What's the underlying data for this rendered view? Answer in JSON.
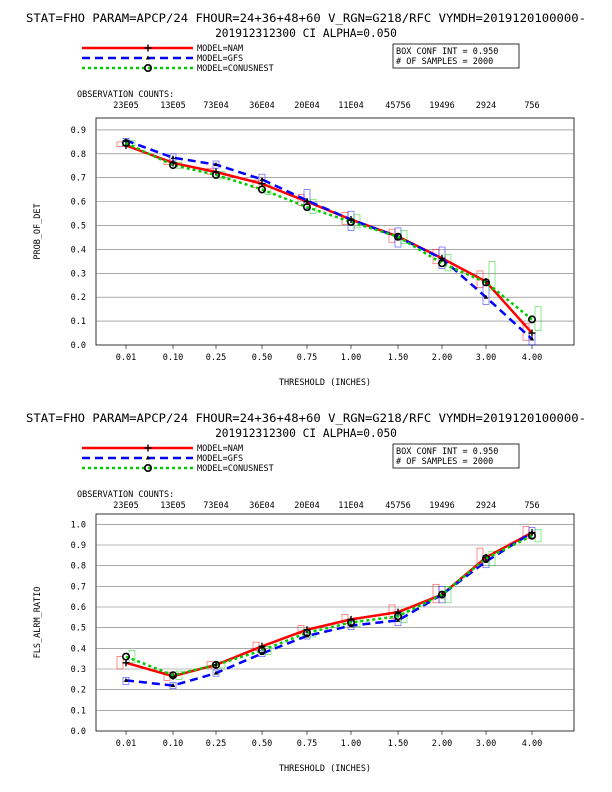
{
  "chart_data": [
    {
      "type": "line",
      "title_line1": "STAT=FHO PARAM=APCP/24 FHOUR=24+36+48+60 V_RGN=G218/RFC VYMDH=2019120100000-",
      "title_line2": "201912312300 CI ALPHA=0.050",
      "box_info": [
        "BOX CONF INT = 0.950",
        "# OF SAMPLES =  2000"
      ],
      "obs_label": "OBSERVATION COUNTS:",
      "obs_counts": [
        "23E05",
        "13E05",
        "73E04",
        "36E04",
        "20E04",
        "11E04",
        "45756",
        "19496",
        "2924",
        "756"
      ],
      "xlabel": "THRESHOLD (INCHES)",
      "ylabel": "PROB_OF_DET",
      "categories": [
        "0.01",
        "0.10",
        "0.25",
        "0.50",
        "0.75",
        "1.00",
        "1.50",
        "2.00",
        "3.00",
        "4.00"
      ],
      "yticks": [
        "0.0",
        "0.1",
        "0.2",
        "0.3",
        "0.4",
        "0.5",
        "0.6",
        "0.7",
        "0.8",
        "0.9"
      ],
      "ylim": [
        0,
        0.95
      ],
      "series": [
        {
          "name": "MODEL=NAM",
          "color": "#ff0000",
          "dash": "solid",
          "marker": "plus",
          "values": [
            0.835,
            0.762,
            0.724,
            0.675,
            0.6,
            0.525,
            0.454,
            0.363,
            0.265,
            0.05
          ]
        },
        {
          "name": "MODEL=GFS",
          "color": "#0000ff",
          "dash": "dashed",
          "marker": "triangle",
          "values": [
            0.856,
            0.784,
            0.755,
            0.693,
            0.605,
            0.525,
            0.452,
            0.362,
            0.2,
            0.025
          ]
        },
        {
          "name": "MODEL=CONUSNEST",
          "color": "#00cc00",
          "dash": "dotted",
          "marker": "circle",
          "values": [
            0.845,
            0.753,
            0.712,
            0.651,
            0.577,
            0.515,
            0.453,
            0.342,
            0.262,
            0.107
          ]
        }
      ],
      "boxes": [
        {
          "series": 0,
          "ranges": [
            [
              0.83,
              0.85
            ],
            [
              0.755,
              0.775
            ],
            [
              0.715,
              0.74
            ],
            [
              0.66,
              0.69
            ],
            [
              0.585,
              0.63
            ],
            [
              0.505,
              0.555
            ],
            [
              0.43,
              0.485
            ],
            [
              0.34,
              0.4
            ],
            [
              0.24,
              0.31
            ],
            [
              0.02,
              0.09
            ]
          ]
        },
        {
          "series": 1,
          "ranges": [
            [
              0.85,
              0.865
            ],
            [
              0.77,
              0.8
            ],
            [
              0.74,
              0.77
            ],
            [
              0.675,
              0.715
            ],
            [
              0.57,
              0.65
            ],
            [
              0.48,
              0.56
            ],
            [
              0.41,
              0.49
            ],
            [
              0.32,
              0.41
            ],
            [
              0.17,
              0.25
            ],
            [
              0.0,
              0.05
            ]
          ]
        },
        {
          "series": 2,
          "ranges": [
            [
              0.835,
              0.855
            ],
            [
              0.74,
              0.765
            ],
            [
              0.695,
              0.725
            ],
            [
              0.63,
              0.67
            ],
            [
              0.55,
              0.61
            ],
            [
              0.49,
              0.545
            ],
            [
              0.425,
              0.48
            ],
            [
              0.31,
              0.38
            ],
            [
              0.23,
              0.35
            ],
            [
              0.06,
              0.16
            ]
          ]
        }
      ],
      "grid": true,
      "legend_position": "top-left"
    },
    {
      "type": "line",
      "title_line1": "STAT=FHO PARAM=APCP/24 FHOUR=24+36+48+60 V_RGN=G218/RFC VYMDH=2019120100000-",
      "title_line2": "201912312300 CI ALPHA=0.050",
      "box_info": [
        "BOX CONF INT = 0.950",
        "# OF SAMPLES =  2000"
      ],
      "obs_label": "OBSERVATION COUNTS:",
      "obs_counts": [
        "23E05",
        "13E05",
        "73E04",
        "36E04",
        "20E04",
        "11E04",
        "45756",
        "19496",
        "2924",
        "756"
      ],
      "xlabel": "THRESHOLD (INCHES)",
      "ylabel": "FLS_ALRM_RATIO",
      "categories": [
        "0.01",
        "0.10",
        "0.25",
        "0.50",
        "0.75",
        "1.00",
        "1.50",
        "2.00",
        "3.00",
        "4.00"
      ],
      "yticks": [
        "0.0",
        "0.1",
        "0.2",
        "0.3",
        "0.4",
        "0.5",
        "0.6",
        "0.7",
        "0.8",
        "0.9",
        "1.0"
      ],
      "ylim": [
        0,
        1.05
      ],
      "series": [
        {
          "name": "MODEL=NAM",
          "color": "#ff0000",
          "dash": "solid",
          "marker": "plus",
          "values": [
            0.33,
            0.265,
            0.32,
            0.41,
            0.49,
            0.54,
            0.575,
            0.66,
            0.84,
            0.96
          ]
        },
        {
          "name": "MODEL=GFS",
          "color": "#0000ff",
          "dash": "dashed",
          "marker": "triangle",
          "values": [
            0.245,
            0.22,
            0.28,
            0.375,
            0.46,
            0.51,
            0.535,
            0.66,
            0.82,
            0.96
          ]
        },
        {
          "name": "MODEL=CONUSNEST",
          "color": "#00cc00",
          "dash": "dotted",
          "marker": "circle",
          "values": [
            0.36,
            0.27,
            0.32,
            0.39,
            0.475,
            0.525,
            0.555,
            0.66,
            0.835,
            0.945
          ]
        }
      ],
      "boxes": [
        {
          "series": 0,
          "ranges": [
            [
              0.3,
              0.36
            ],
            [
              0.245,
              0.285
            ],
            [
              0.305,
              0.335
            ],
            [
              0.39,
              0.43
            ],
            [
              0.47,
              0.51
            ],
            [
              0.52,
              0.565
            ],
            [
              0.545,
              0.61
            ],
            [
              0.62,
              0.71
            ],
            [
              0.81,
              0.885
            ],
            [
              0.93,
              0.99
            ]
          ]
        },
        {
          "series": 1,
          "ranges": [
            [
              0.225,
              0.26
            ],
            [
              0.205,
              0.235
            ],
            [
              0.265,
              0.295
            ],
            [
              0.36,
              0.39
            ],
            [
              0.445,
              0.475
            ],
            [
              0.49,
              0.53
            ],
            [
              0.51,
              0.56
            ],
            [
              0.62,
              0.7
            ],
            [
              0.79,
              0.85
            ],
            [
              0.935,
              0.985
            ]
          ]
        },
        {
          "series": 2,
          "ranges": [
            [
              0.33,
              0.39
            ],
            [
              0.25,
              0.29
            ],
            [
              0.305,
              0.335
            ],
            [
              0.37,
              0.41
            ],
            [
              0.455,
              0.495
            ],
            [
              0.505,
              0.545
            ],
            [
              0.525,
              0.59
            ],
            [
              0.62,
              0.7
            ],
            [
              0.8,
              0.87
            ],
            [
              0.915,
              0.975
            ]
          ]
        }
      ],
      "grid": true,
      "legend_position": "top-left"
    }
  ]
}
